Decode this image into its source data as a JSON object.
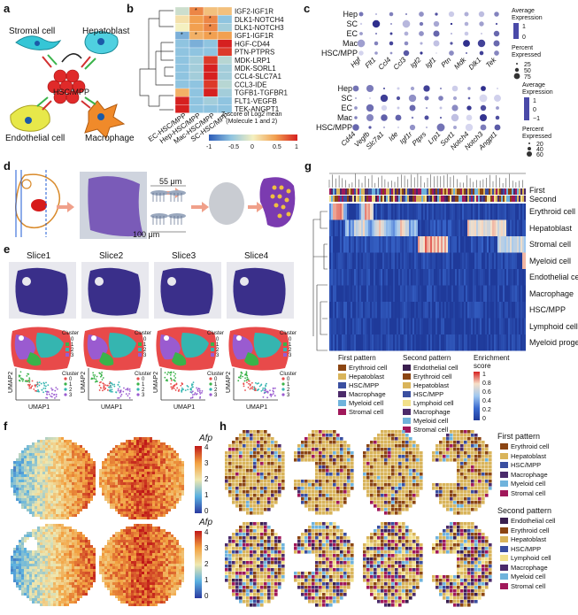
{
  "panels": {
    "a": "a",
    "b": "b",
    "c": "c",
    "d": "d",
    "e": "e",
    "f": "f",
    "g": "g",
    "h": "h"
  },
  "a": {
    "stromal": "Stromal cell",
    "hepatoblast": "Hepatoblast",
    "hsc": "HSC/MPP",
    "endothelial": "Endothelial cell",
    "macrophage": "Macrophage"
  },
  "b": {
    "rows": [
      "IGF2-IGF1R",
      "DLK1-NOTCH4",
      "DLK1-NOTCH3",
      "IGF1-IGF1R",
      "HGF-CD44",
      "PTN-PTPRS",
      "MDK-LRP1",
      "MDK-SORL1",
      "CCL4-SLC7A1",
      "CCL3-IDE",
      "TGFB1-TGFBR1",
      "FLT1-VEGFB",
      "TEK-ANGPT1"
    ],
    "cols": [
      "EC-HSC/MPP",
      "Hep-HSC/MPP",
      "Mac-HSC/MPP",
      "SC-HSC/MPP"
    ],
    "legend_title": "Z-score of Log2 mean\n(Molecule 1 and 2)",
    "ticks": [
      "-1",
      "-0.5",
      "0",
      "0.5",
      "1"
    ],
    "values": [
      [
        -0.2,
        0.6,
        0.3,
        0.3
      ],
      [
        0.1,
        0.5,
        0.6,
        -0.5
      ],
      [
        0.0,
        0.5,
        0.6,
        -0.4
      ],
      [
        -0.6,
        0.4,
        0.5,
        0.5
      ],
      [
        -0.5,
        -0.6,
        -0.5,
        1.0
      ],
      [
        -0.5,
        -0.5,
        -0.5,
        0.9
      ],
      [
        -0.5,
        -0.4,
        0.9,
        -0.3
      ],
      [
        -0.5,
        -0.4,
        1.0,
        -0.4
      ],
      [
        -0.5,
        -0.4,
        1.0,
        -0.4
      ],
      [
        -0.5,
        -0.5,
        0.9,
        -0.3
      ],
      [
        0.4,
        -0.5,
        1.0,
        -0.4
      ],
      [
        1.0,
        -0.5,
        -0.4,
        -0.5
      ],
      [
        1.0,
        -0.5,
        -0.5,
        -0.5
      ]
    ],
    "stars": [
      [
        0,
        1
      ],
      [
        1,
        2
      ],
      [
        2,
        2
      ],
      [
        3,
        0
      ],
      [
        3,
        1
      ],
      [
        3,
        2
      ]
    ]
  },
  "c": {
    "rows": [
      "Hep",
      "SC",
      "EC",
      "Mac",
      "HSC/MPP"
    ],
    "genes_top": [
      "Hgf",
      "Flt1",
      "Ccl4",
      "Ccl3",
      "Igf2",
      "Igf1",
      "Ptn",
      "Mdk",
      "Dlk1",
      "Tek"
    ],
    "genes_bottom": [
      "Cd44",
      "Vegfb",
      "Slc7a1",
      "Ide",
      "Igf1r",
      "Ptprs",
      "Lrp1",
      "Sort1",
      "Notch4",
      "Notch3",
      "Angpt1"
    ],
    "legend_avg": "Average Expression",
    "legend_pct": "Percent Expressed",
    "top_avg_ticks": [
      "1",
      "0"
    ],
    "top_pct_ticks": [
      "25",
      "50",
      "75"
    ],
    "bottom_avg_ticks": [
      "1",
      "0",
      "−1"
    ],
    "bottom_pct_ticks": [
      "20",
      "40",
      "60"
    ]
  },
  "d": {
    "scale1": "55 μm",
    "scale2": "100 μm"
  },
  "e": {
    "slices": [
      "Slice1",
      "Slice2",
      "Slice3",
      "Slice4"
    ],
    "cluster": "Cluster",
    "clusters": [
      "0",
      "1",
      "2",
      "3"
    ],
    "umap1": "UMAP1",
    "umap2": "UMAP2"
  },
  "f": {
    "gene": "Afp",
    "ticks": [
      "4",
      "3",
      "2",
      "1",
      "0"
    ]
  },
  "g": {
    "first": "First",
    "second": "Second",
    "rows": [
      "Erythroid cell",
      "Hepatoblast",
      "Stromal cell",
      "Myeloid cell",
      "Endothelial cell",
      "Macrophage",
      "HSC/MPP",
      "Lymphoid cell",
      "Myeloid progenitor"
    ],
    "first_pattern_title": "First pattern",
    "first_pattern": [
      "Erythroid cell",
      "Hepatoblast",
      "HSC/MPP",
      "Macrophage",
      "Myeloid cell",
      "Stromal cell"
    ],
    "second_pattern_title": "Second pattern",
    "second_pattern": [
      "Endothelial cell",
      "Erythroid cell",
      "Hepatoblast",
      "HSC/MPP",
      "Lymphoid cell",
      "Macrophage",
      "Myeloid cell",
      "Stromal cell"
    ],
    "enrich_title": "Enrichment score",
    "enrich_ticks": [
      "1",
      "0.8",
      "0.6",
      "0.4",
      "0.2",
      "0"
    ]
  },
  "h": {
    "first_pattern_title": "First pattern",
    "first_pattern": [
      "Erythroid cell",
      "Hepatoblast",
      "HSC/MPP",
      "Macrophage",
      "Myeloid cell",
      "Stromal cell"
    ],
    "second_pattern_title": "Second pattern",
    "second_pattern": [
      "Endothelial cell",
      "Erythroid cell",
      "Hepatoblast",
      "HSC/MPP",
      "Lymphoid cell",
      "Macrophage",
      "Myeloid cell",
      "Stromal cell"
    ]
  },
  "colors": {
    "erythroid": "#8b4513",
    "hepatoblast": "#d9b45a",
    "hsc": "#3a4fa0",
    "macrophage": "#4b2a6a",
    "myeloid": "#6fb3dc",
    "stromal": "#a0185a",
    "endothelial": "#3a1f4f",
    "lymphoid": "#f2e08a",
    "cluster0": "#e84a4a",
    "cluster1": "#3ab34a",
    "cluster2": "#35b5b0",
    "cluster3": "#9a5bd0"
  }
}
